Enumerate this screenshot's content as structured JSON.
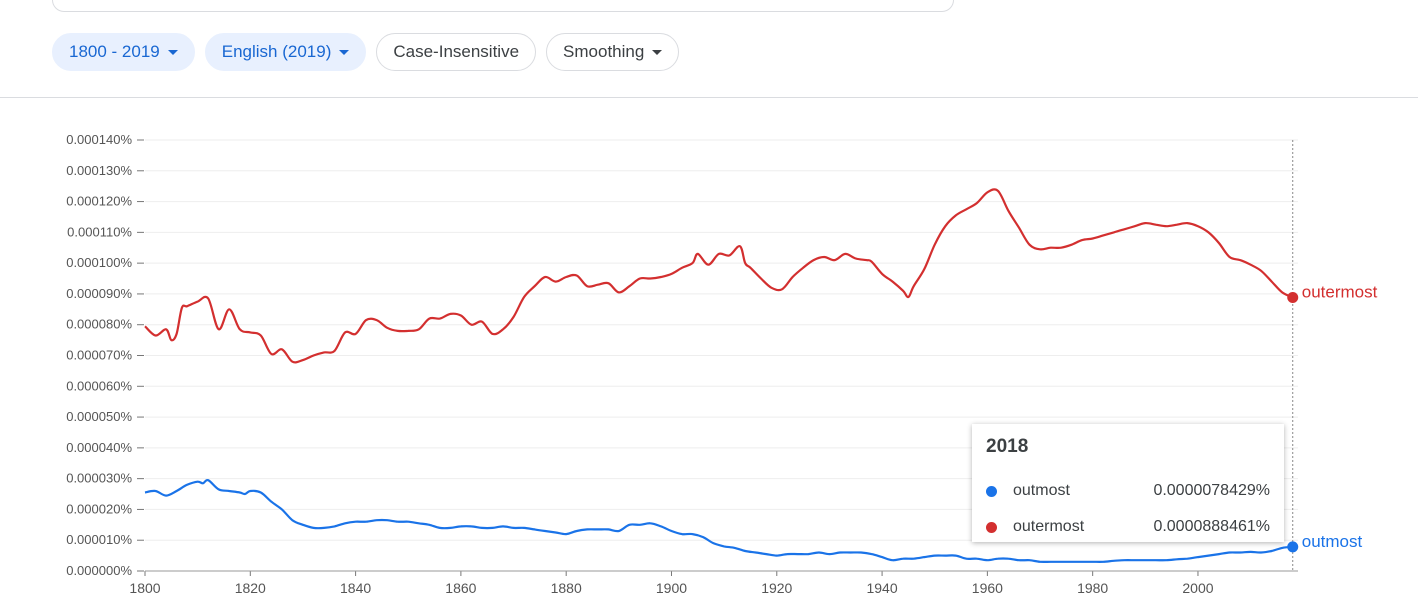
{
  "filters": {
    "year_range": "1800 - 2019",
    "corpus": "English (2019)",
    "case": "Case-Insensitive",
    "smoothing": "Smoothing"
  },
  "colors": {
    "outmost": "#1a73e8",
    "outermost": "#d32f2f",
    "accent": "#1967d2"
  },
  "tooltip": {
    "year": "2018",
    "rows": [
      {
        "name": "outmost",
        "value": "0.0000078429%"
      },
      {
        "name": "outermost",
        "value": "0.0000888461%"
      }
    ]
  },
  "chart_data": {
    "type": "line",
    "xlabel": "",
    "ylabel": "",
    "xlim": [
      1800,
      2019
    ],
    "ylim": [
      0,
      0.00014
    ],
    "x_ticks": [
      1800,
      1820,
      1840,
      1860,
      1880,
      1900,
      1920,
      1940,
      1960,
      1980,
      2000
    ],
    "y_ticks": [
      "0.000000%",
      "0.000010%",
      "0.000020%",
      "0.000030%",
      "0.000040%",
      "0.000050%",
      "0.000060%",
      "0.000070%",
      "0.000080%",
      "0.000090%",
      "0.000100%",
      "0.000110%",
      "0.000120%",
      "0.000130%",
      "0.000140%"
    ],
    "grid": true,
    "legend": "end-of-line labels",
    "hover_year": 2018,
    "series": [
      {
        "name": "outermost",
        "points": [
          [
            1800,
            7.95e-05
          ],
          [
            1802,
            7.65e-05
          ],
          [
            1804,
            7.85e-05
          ],
          [
            1805,
            7.5e-05
          ],
          [
            1806,
            7.7e-05
          ],
          [
            1807,
            8.55e-05
          ],
          [
            1808,
            8.6e-05
          ],
          [
            1810,
            8.75e-05
          ],
          [
            1812,
            8.85e-05
          ],
          [
            1814,
            7.85e-05
          ],
          [
            1816,
            8.5e-05
          ],
          [
            1818,
            7.85e-05
          ],
          [
            1820,
            7.75e-05
          ],
          [
            1822,
            7.65e-05
          ],
          [
            1824,
            7.05e-05
          ],
          [
            1826,
            7.2e-05
          ],
          [
            1828,
            6.8e-05
          ],
          [
            1830,
            6.85e-05
          ],
          [
            1832,
            7e-05
          ],
          [
            1834,
            7.1e-05
          ],
          [
            1836,
            7.15e-05
          ],
          [
            1838,
            7.75e-05
          ],
          [
            1840,
            7.7e-05
          ],
          [
            1842,
            8.15e-05
          ],
          [
            1844,
            8.15e-05
          ],
          [
            1846,
            7.9e-05
          ],
          [
            1848,
            7.8e-05
          ],
          [
            1850,
            7.8e-05
          ],
          [
            1852,
            7.85e-05
          ],
          [
            1854,
            8.2e-05
          ],
          [
            1856,
            8.2e-05
          ],
          [
            1858,
            8.35e-05
          ],
          [
            1860,
            8.3e-05
          ],
          [
            1862,
            8e-05
          ],
          [
            1864,
            8.1e-05
          ],
          [
            1866,
            7.7e-05
          ],
          [
            1868,
            7.85e-05
          ],
          [
            1870,
            8.25e-05
          ],
          [
            1872,
            8.9e-05
          ],
          [
            1874,
            9.25e-05
          ],
          [
            1876,
            9.55e-05
          ],
          [
            1878,
            9.4e-05
          ],
          [
            1880,
            9.55e-05
          ],
          [
            1882,
            9.6e-05
          ],
          [
            1884,
            9.25e-05
          ],
          [
            1886,
            9.3e-05
          ],
          [
            1888,
            9.35e-05
          ],
          [
            1890,
            9.05e-05
          ],
          [
            1892,
            9.25e-05
          ],
          [
            1894,
            9.5e-05
          ],
          [
            1896,
            9.5e-05
          ],
          [
            1898,
            9.55e-05
          ],
          [
            1900,
            9.65e-05
          ],
          [
            1902,
            9.85e-05
          ],
          [
            1904,
            0.0001
          ],
          [
            1905,
            0.000103
          ],
          [
            1907,
            9.95e-05
          ],
          [
            1909,
            0.000103
          ],
          [
            1911,
            0.0001025
          ],
          [
            1913,
            0.0001055
          ],
          [
            1914,
            0.0001
          ],
          [
            1915,
            9.85e-05
          ],
          [
            1917,
            9.5e-05
          ],
          [
            1919,
            9.2e-05
          ],
          [
            1921,
            9.15e-05
          ],
          [
            1923,
            9.55e-05
          ],
          [
            1925,
            9.85e-05
          ],
          [
            1927,
            0.000101
          ],
          [
            1929,
            0.000102
          ],
          [
            1931,
            0.000101
          ],
          [
            1933,
            0.000103
          ],
          [
            1935,
            0.0001015
          ],
          [
            1937,
            0.000101
          ],
          [
            1938,
            0.0001005
          ],
          [
            1940,
            9.65e-05
          ],
          [
            1942,
            9.4e-05
          ],
          [
            1944,
            9.1e-05
          ],
          [
            1945,
            8.9e-05
          ],
          [
            1946,
            9.25e-05
          ],
          [
            1948,
            9.8e-05
          ],
          [
            1950,
            0.000106
          ],
          [
            1952,
            0.000112
          ],
          [
            1954,
            0.0001155
          ],
          [
            1956,
            0.0001175
          ],
          [
            1958,
            0.0001195
          ],
          [
            1960,
            0.000123
          ],
          [
            1962,
            0.0001235
          ],
          [
            1964,
            0.000117
          ],
          [
            1966,
            0.0001115
          ],
          [
            1968,
            0.000106
          ],
          [
            1970,
            0.0001045
          ],
          [
            1972,
            0.000105
          ],
          [
            1974,
            0.000105
          ],
          [
            1976,
            0.000106
          ],
          [
            1978,
            0.0001075
          ],
          [
            1980,
            0.000108
          ],
          [
            1982,
            0.000109
          ],
          [
            1984,
            0.00011
          ],
          [
            1986,
            0.000111
          ],
          [
            1988,
            0.000112
          ],
          [
            1990,
            0.000113
          ],
          [
            1992,
            0.0001125
          ],
          [
            1994,
            0.000112
          ],
          [
            1996,
            0.0001125
          ],
          [
            1998,
            0.000113
          ],
          [
            2000,
            0.000112
          ],
          [
            2002,
            0.00011
          ],
          [
            2004,
            0.0001065
          ],
          [
            2006,
            0.000102
          ],
          [
            2008,
            0.000101
          ],
          [
            2010,
            9.95e-05
          ],
          [
            2012,
            9.75e-05
          ],
          [
            2014,
            9.4e-05
          ],
          [
            2016,
            9.05e-05
          ],
          [
            2018,
            8.88461e-05
          ]
        ]
      },
      {
        "name": "outmost",
        "points": [
          [
            1800,
            2.55e-05
          ],
          [
            1802,
            2.6e-05
          ],
          [
            1804,
            2.45e-05
          ],
          [
            1806,
            2.6e-05
          ],
          [
            1808,
            2.8e-05
          ],
          [
            1810,
            2.9e-05
          ],
          [
            1811,
            2.85e-05
          ],
          [
            1812,
            2.95e-05
          ],
          [
            1814,
            2.65e-05
          ],
          [
            1816,
            2.6e-05
          ],
          [
            1818,
            2.55e-05
          ],
          [
            1819,
            2.5e-05
          ],
          [
            1820,
            2.6e-05
          ],
          [
            1822,
            2.55e-05
          ],
          [
            1824,
            2.25e-05
          ],
          [
            1826,
            2e-05
          ],
          [
            1828,
            1.65e-05
          ],
          [
            1830,
            1.5e-05
          ],
          [
            1832,
            1.4e-05
          ],
          [
            1834,
            1.4e-05
          ],
          [
            1836,
            1.45e-05
          ],
          [
            1838,
            1.55e-05
          ],
          [
            1840,
            1.6e-05
          ],
          [
            1842,
            1.6e-05
          ],
          [
            1844,
            1.65e-05
          ],
          [
            1846,
            1.65e-05
          ],
          [
            1848,
            1.6e-05
          ],
          [
            1850,
            1.6e-05
          ],
          [
            1852,
            1.55e-05
          ],
          [
            1854,
            1.5e-05
          ],
          [
            1856,
            1.4e-05
          ],
          [
            1858,
            1.4e-05
          ],
          [
            1860,
            1.45e-05
          ],
          [
            1862,
            1.45e-05
          ],
          [
            1864,
            1.4e-05
          ],
          [
            1866,
            1.4e-05
          ],
          [
            1868,
            1.45e-05
          ],
          [
            1870,
            1.4e-05
          ],
          [
            1872,
            1.4e-05
          ],
          [
            1874,
            1.35e-05
          ],
          [
            1876,
            1.3e-05
          ],
          [
            1878,
            1.25e-05
          ],
          [
            1880,
            1.2e-05
          ],
          [
            1882,
            1.3e-05
          ],
          [
            1884,
            1.35e-05
          ],
          [
            1886,
            1.35e-05
          ],
          [
            1888,
            1.35e-05
          ],
          [
            1890,
            1.3e-05
          ],
          [
            1892,
            1.5e-05
          ],
          [
            1894,
            1.5e-05
          ],
          [
            1896,
            1.55e-05
          ],
          [
            1898,
            1.45e-05
          ],
          [
            1900,
            1.3e-05
          ],
          [
            1902,
            1.2e-05
          ],
          [
            1904,
            1.2e-05
          ],
          [
            1906,
            1.1e-05
          ],
          [
            1908,
            9e-06
          ],
          [
            1910,
            8e-06
          ],
          [
            1912,
            7.5e-06
          ],
          [
            1914,
            6.5e-06
          ],
          [
            1916,
            6e-06
          ],
          [
            1918,
            5.5e-06
          ],
          [
            1920,
            5e-06
          ],
          [
            1922,
            5.5e-06
          ],
          [
            1924,
            5.5e-06
          ],
          [
            1926,
            5.5e-06
          ],
          [
            1928,
            6e-06
          ],
          [
            1930,
            5.5e-06
          ],
          [
            1932,
            6e-06
          ],
          [
            1934,
            6e-06
          ],
          [
            1936,
            6e-06
          ],
          [
            1938,
            5.5e-06
          ],
          [
            1940,
            4.5e-06
          ],
          [
            1942,
            3.5e-06
          ],
          [
            1944,
            4e-06
          ],
          [
            1946,
            4e-06
          ],
          [
            1948,
            4.5e-06
          ],
          [
            1950,
            5e-06
          ],
          [
            1952,
            5e-06
          ],
          [
            1954,
            5e-06
          ],
          [
            1956,
            4e-06
          ],
          [
            1958,
            4e-06
          ],
          [
            1960,
            3.5e-06
          ],
          [
            1962,
            4e-06
          ],
          [
            1964,
            4e-06
          ],
          [
            1966,
            3.5e-06
          ],
          [
            1968,
            3.5e-06
          ],
          [
            1970,
            3e-06
          ],
          [
            1972,
            3e-06
          ],
          [
            1974,
            3e-06
          ],
          [
            1976,
            3e-06
          ],
          [
            1978,
            3e-06
          ],
          [
            1980,
            3e-06
          ],
          [
            1982,
            3e-06
          ],
          [
            1984,
            3.3e-06
          ],
          [
            1986,
            3.5e-06
          ],
          [
            1988,
            3.5e-06
          ],
          [
            1990,
            3.5e-06
          ],
          [
            1992,
            3.5e-06
          ],
          [
            1994,
            3.5e-06
          ],
          [
            1996,
            3.8e-06
          ],
          [
            1998,
            4e-06
          ],
          [
            2000,
            4.5e-06
          ],
          [
            2002,
            5e-06
          ],
          [
            2004,
            5.5e-06
          ],
          [
            2006,
            6e-06
          ],
          [
            2008,
            6e-06
          ],
          [
            2010,
            6.2e-06
          ],
          [
            2012,
            6e-06
          ],
          [
            2014,
            6.5e-06
          ],
          [
            2016,
            7.5e-06
          ],
          [
            2018,
            7.8429e-06
          ]
        ]
      }
    ]
  }
}
